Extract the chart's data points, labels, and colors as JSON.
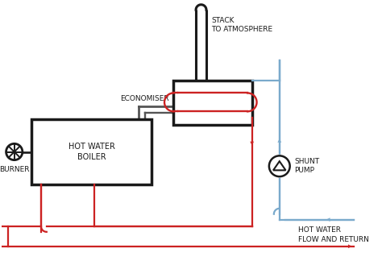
{
  "bg_color": "#ffffff",
  "black": "#1a1a1a",
  "red": "#cc2222",
  "blue": "#7aaacc",
  "gray": "#555555",
  "labels": {
    "stack": "STACK\nTO ATMOSPHERE",
    "economiser": "ECONOMISER",
    "boiler": "HOT WATER\nBOILER",
    "burner": "BURNER",
    "shunt_pump": "SHUNT\nPUMP",
    "flow_return": "HOT WATER\nFLOW AND RETURN"
  },
  "figsize": [
    4.74,
    3.24
  ],
  "dpi": 100
}
